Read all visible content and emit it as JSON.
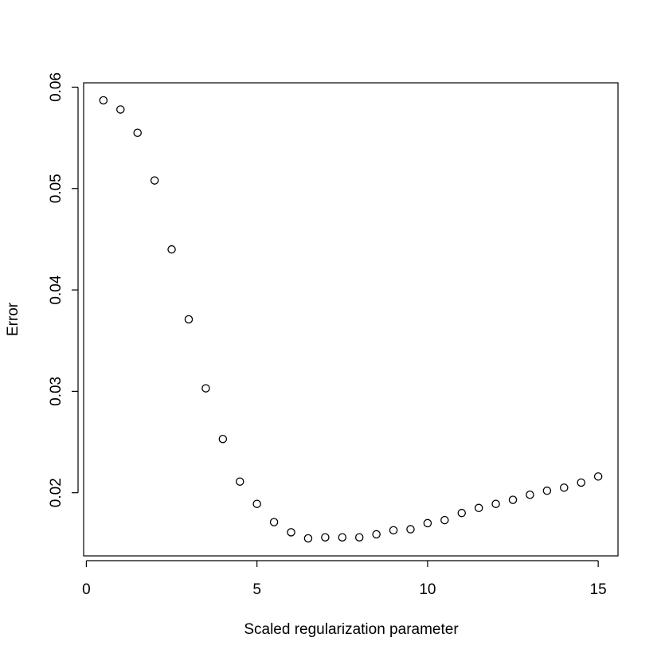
{
  "chart_data": {
    "type": "scatter",
    "title": "",
    "xlabel": "Scaled regularization parameter",
    "ylabel": "Error",
    "xlim": [
      0.5,
      15
    ],
    "ylim": [
      0.0155,
      0.0587
    ],
    "x_ticks": [
      0,
      5,
      10,
      15
    ],
    "x_tick_labels": [
      "0",
      "5",
      "10",
      "15"
    ],
    "y_ticks": [
      0.02,
      0.03,
      0.04,
      0.05,
      0.06
    ],
    "y_tick_labels": [
      "0.02",
      "0.03",
      "0.04",
      "0.05",
      "0.06"
    ],
    "grid": false,
    "marker": "open-circle",
    "x": [
      0.5,
      1.0,
      1.5,
      2.0,
      2.5,
      3.0,
      3.5,
      4.0,
      4.5,
      5.0,
      5.5,
      6.0,
      6.5,
      7.0,
      7.5,
      8.0,
      8.5,
      9.0,
      9.5,
      10.0,
      10.5,
      11.0,
      11.5,
      12.0,
      12.5,
      13.0,
      13.5,
      14.0,
      14.5,
      15.0
    ],
    "y": [
      0.0587,
      0.0578,
      0.0555,
      0.0508,
      0.044,
      0.0371,
      0.0303,
      0.0253,
      0.0211,
      0.0189,
      0.0171,
      0.0161,
      0.0155,
      0.0156,
      0.0156,
      0.0156,
      0.0159,
      0.0163,
      0.0164,
      0.017,
      0.0173,
      0.018,
      0.0185,
      0.0189,
      0.0193,
      0.0198,
      0.0202,
      0.0205,
      0.021,
      0.0216
    ]
  }
}
